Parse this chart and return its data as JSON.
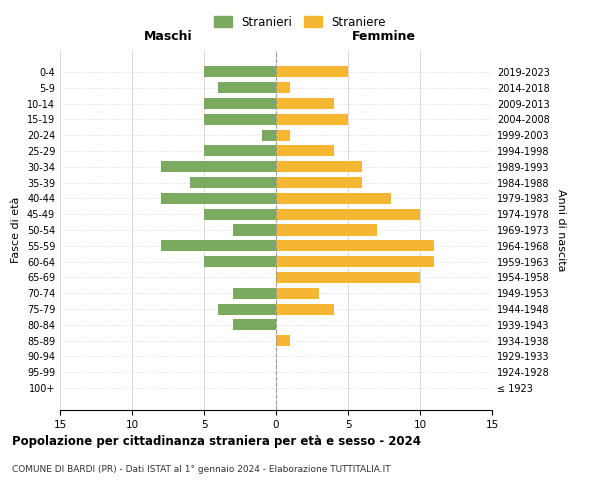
{
  "age_groups": [
    "100+",
    "95-99",
    "90-94",
    "85-89",
    "80-84",
    "75-79",
    "70-74",
    "65-69",
    "60-64",
    "55-59",
    "50-54",
    "45-49",
    "40-44",
    "35-39",
    "30-34",
    "25-29",
    "20-24",
    "15-19",
    "10-14",
    "5-9",
    "0-4"
  ],
  "birth_years": [
    "≤ 1923",
    "1924-1928",
    "1929-1933",
    "1934-1938",
    "1939-1943",
    "1944-1948",
    "1949-1953",
    "1954-1958",
    "1959-1963",
    "1964-1968",
    "1969-1973",
    "1974-1978",
    "1979-1983",
    "1984-1988",
    "1989-1993",
    "1994-1998",
    "1999-2003",
    "2004-2008",
    "2009-2013",
    "2014-2018",
    "2019-2023"
  ],
  "males": [
    0,
    0,
    0,
    0,
    3,
    4,
    3,
    0,
    5,
    8,
    3,
    5,
    8,
    6,
    8,
    5,
    1,
    5,
    5,
    4,
    5
  ],
  "females": [
    0,
    0,
    0,
    1,
    0,
    4,
    3,
    10,
    11,
    11,
    7,
    10,
    8,
    6,
    6,
    4,
    1,
    5,
    4,
    1,
    5
  ],
  "male_color": "#7aaa5d",
  "female_color": "#f5b731",
  "title": "Popolazione per cittadinanza straniera per età e sesso - 2024",
  "subtitle": "COMUNE DI BARDI (PR) - Dati ISTAT al 1° gennaio 2024 - Elaborazione TUTTITALIA.IT",
  "xlabel_left": "Maschi",
  "xlabel_right": "Femmine",
  "ylabel_left": "Fasce di età",
  "ylabel_right": "Anni di nascita",
  "legend_male": "Stranieri",
  "legend_female": "Straniere",
  "xlim": 15,
  "background_color": "#ffffff",
  "grid_color": "#cccccc"
}
